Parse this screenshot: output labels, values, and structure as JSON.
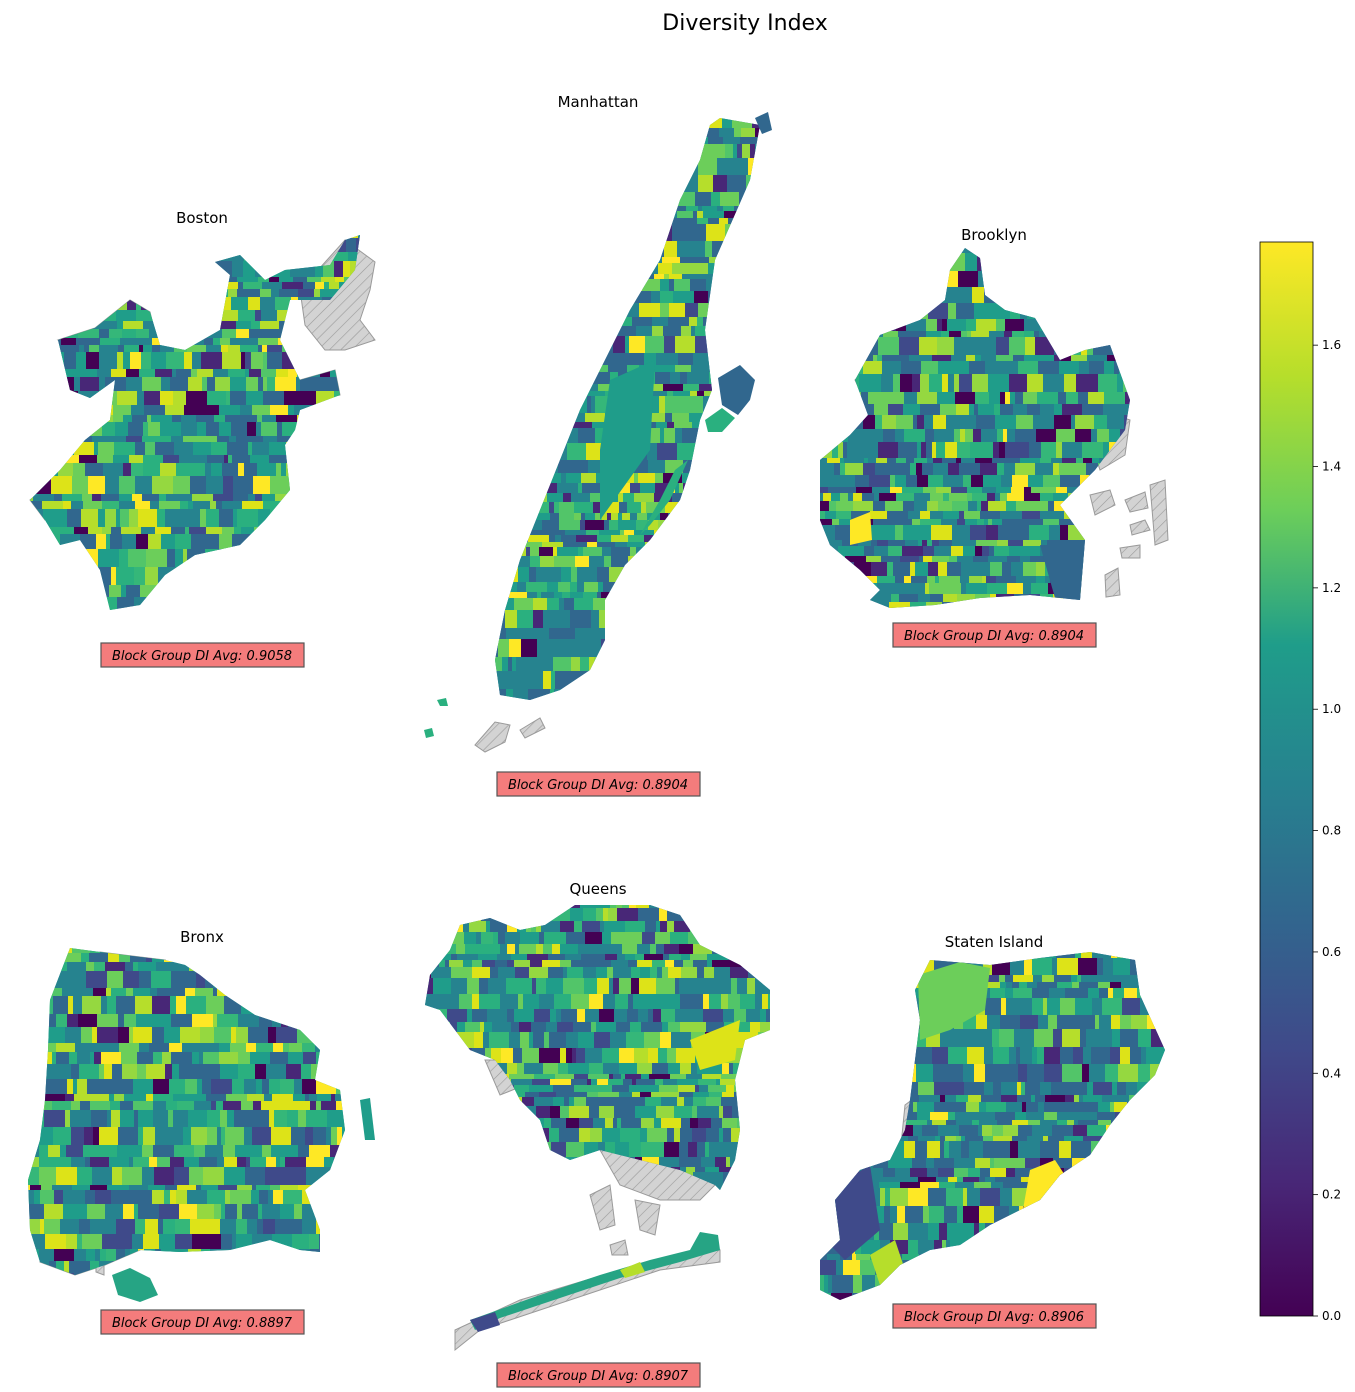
{
  "figure": {
    "title": "Diversity Index"
  },
  "colormap": {
    "name": "viridis",
    "stops": [
      "#440154",
      "#482777",
      "#3f4a8a",
      "#31678e",
      "#26838f",
      "#1f9d8a",
      "#6cce5a",
      "#b6de2b",
      "#fee825"
    ],
    "hatch_fill": "#d3d3d3",
    "hatch_stroke": "#9a9a9a",
    "range": [
      0.0,
      1.77
    ],
    "ticks": [
      0.0,
      0.2,
      0.4,
      0.6,
      0.8,
      1.0,
      1.2,
      1.4,
      1.6
    ],
    "tick_labels": [
      "0.0",
      "0.2",
      "0.4",
      "0.6",
      "0.8",
      "1.0",
      "1.2",
      "1.4",
      "1.6"
    ]
  },
  "annotation_color": "#f47c7c",
  "panels": [
    {
      "name": "Boston",
      "avg_label": "Block Group DI Avg: 0.9058",
      "avg": 0.9058
    },
    {
      "name": "Manhattan",
      "avg_label": "Block Group DI Avg: 0.8904",
      "avg": 0.8904
    },
    {
      "name": "Brooklyn",
      "avg_label": "Block Group DI Avg: 0.8904",
      "avg": 0.8904
    },
    {
      "name": "Bronx",
      "avg_label": "Block Group DI Avg: 0.8897",
      "avg": 0.8897
    },
    {
      "name": "Queens",
      "avg_label": "Block Group DI Avg: 0.8907",
      "avg": 0.8907
    },
    {
      "name": "Staten Island",
      "avg_label": "Block Group DI Avg: 0.8906",
      "avg": 0.8906
    }
  ]
}
